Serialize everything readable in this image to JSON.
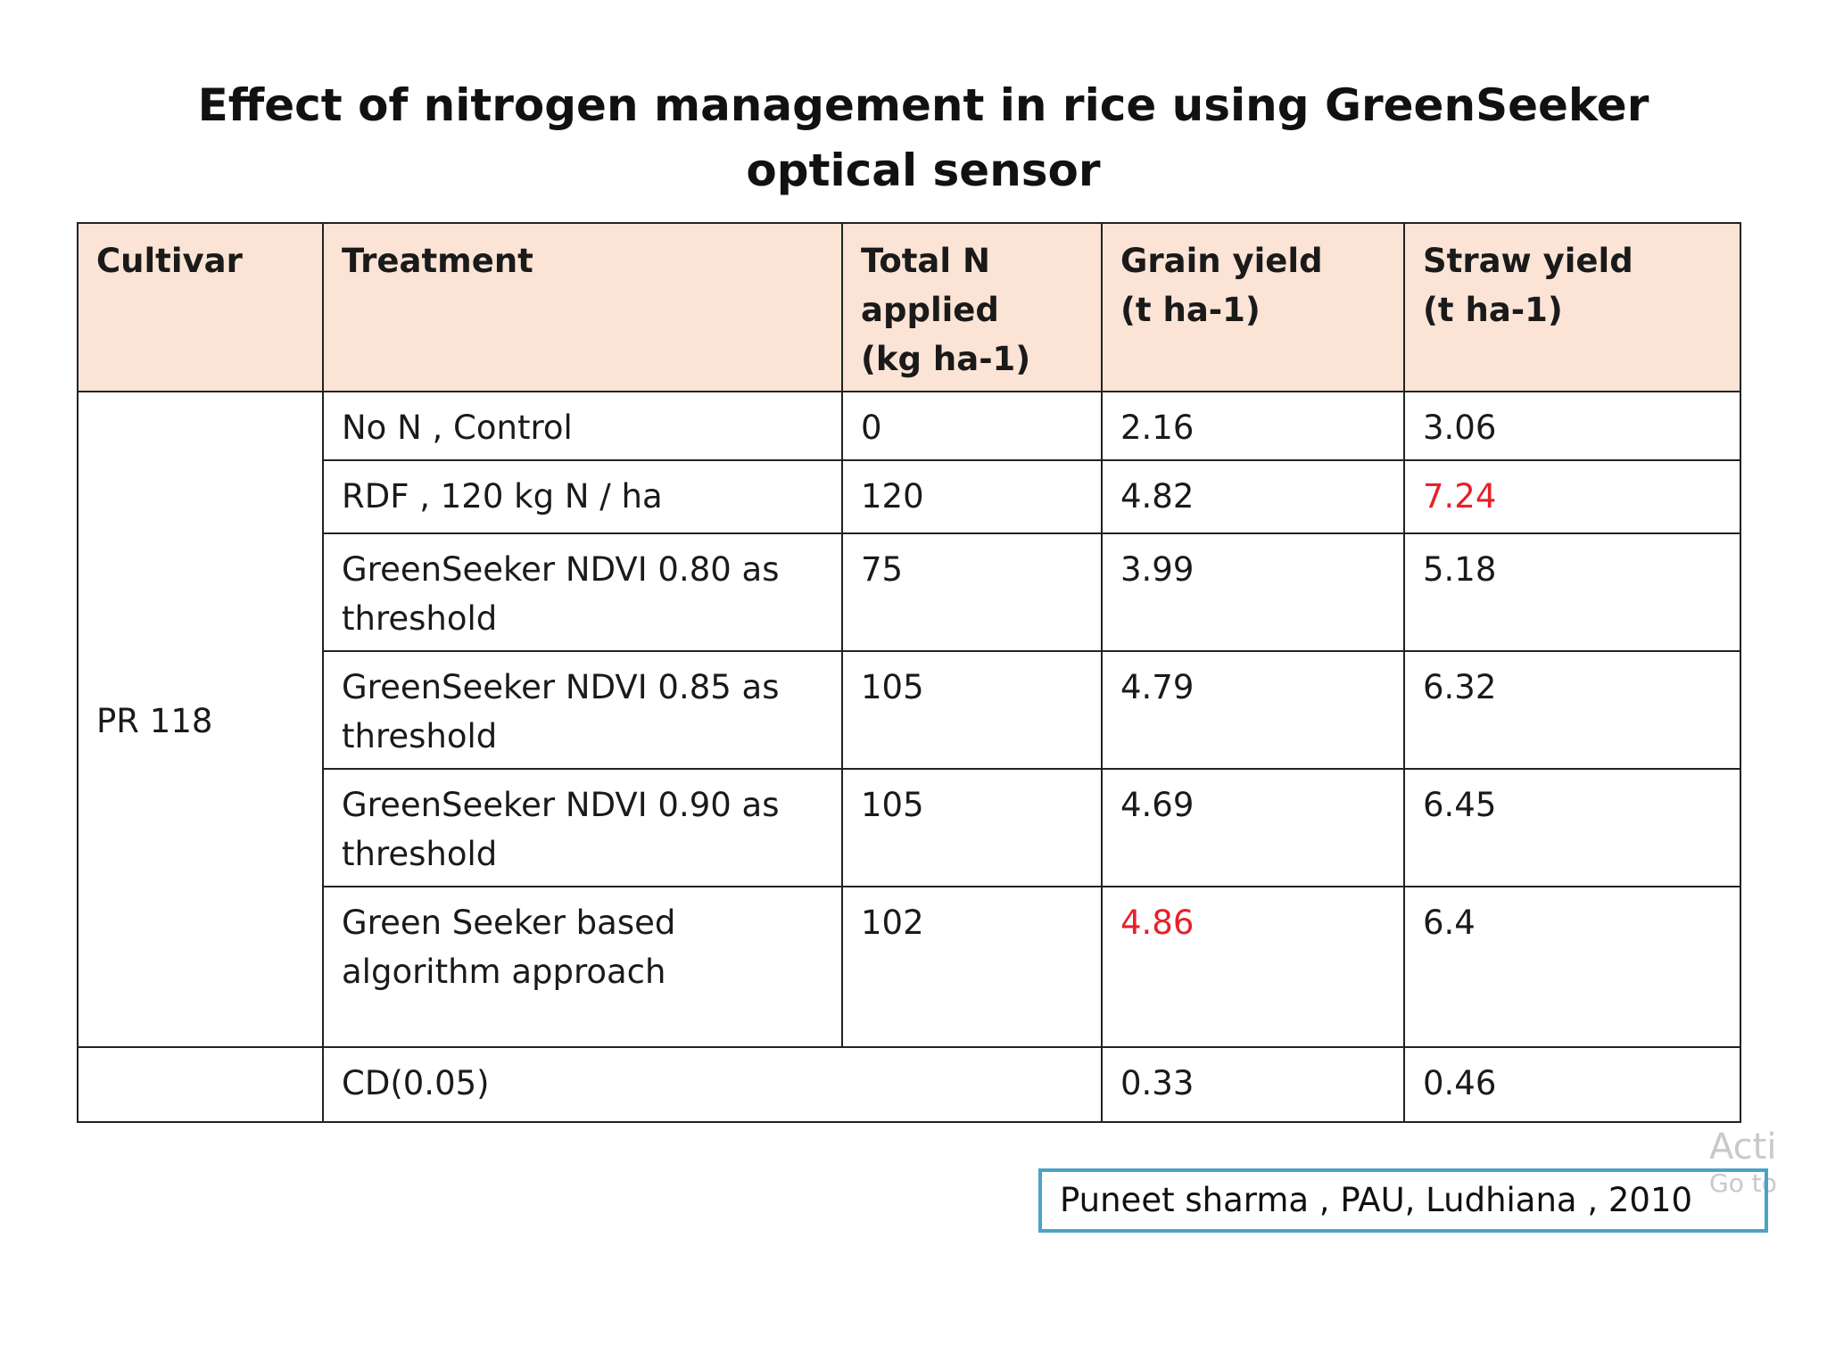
{
  "title": {
    "line1": "Effect of nitrogen management in rice using GreenSeeker",
    "line2": "optical sensor"
  },
  "table": {
    "headers": {
      "cultivar": "Cultivar",
      "treatment": "Treatment",
      "total_n_1": "Total N",
      "total_n_2": "applied",
      "total_n_3": "(kg ha-1)",
      "grain_1": "Grain yield",
      "grain_2": "(t ha-1)",
      "straw_1": "Straw yield",
      "straw_2": "(t ha-1)"
    },
    "cultivar": "PR 118",
    "rows": [
      {
        "treatment_1": "No N , Control",
        "treatment_2": "",
        "total_n": "0",
        "grain": "2.16",
        "straw": "3.06"
      },
      {
        "treatment_1": "RDF , 120 kg N / ha",
        "treatment_2": "",
        "total_n": "120",
        "grain": "4.82",
        "straw": "7.24"
      },
      {
        "treatment_1": "GreenSeeker NDVI 0.80 as",
        "treatment_2": "threshold",
        "total_n": "75",
        "grain": "3.99",
        "straw": "5.18"
      },
      {
        "treatment_1": "GreenSeeker NDVI 0.85 as",
        "treatment_2": "threshold",
        "total_n": "105",
        "grain": "4.79",
        "straw": "6.32"
      },
      {
        "treatment_1": "GreenSeeker NDVI 0.90 as",
        "treatment_2": "threshold",
        "total_n": "105",
        "grain": "4.69",
        "straw": "6.45"
      },
      {
        "treatment_1": "Green Seeker based",
        "treatment_2": "algorithm approach",
        "total_n": "102",
        "grain": "4.86",
        "straw": "6.4"
      }
    ],
    "cd_row": {
      "cultivar": "",
      "label": "CD(0.05)",
      "grain": "0.33",
      "straw": "0.46"
    },
    "highlight_color": "#e8202a",
    "header_background": "#fbe4d5"
  },
  "citation": "Puneet sharma , PAU, Ludhiana , 2010",
  "watermark": {
    "line1": "Acti",
    "line2": "Go to"
  }
}
